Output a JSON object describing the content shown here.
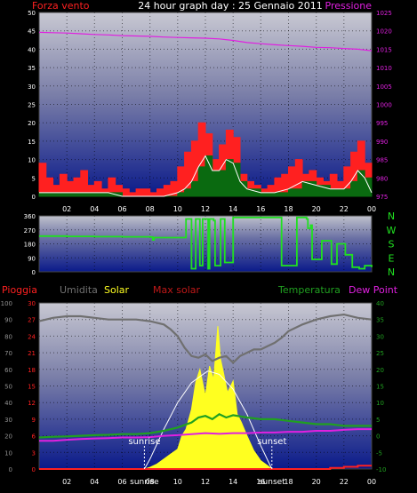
{
  "title": "24 hour graph day : 25 Gennaio 2011",
  "x_tick_labels": [
    "02",
    "04",
    "06",
    "08",
    "10",
    "12",
    "14",
    "16",
    "18",
    "20",
    "22",
    "00"
  ],
  "colors": {
    "background": "#000000",
    "wind": "#ff2020",
    "gust_dark": "#0a6a10",
    "wind_light": "#ffffff",
    "pressure": "#e020e0",
    "direction": "#20e020",
    "humidity": "#707070",
    "solar": "#ffff20",
    "max_solar": "#ffffff",
    "temperature": "#20a020",
    "dew_point": "#e020e0",
    "rain": "#ff2020"
  },
  "chart_data": [
    {
      "type": "line",
      "panel": "wind-pressure",
      "left_axis_label": "Forza vento",
      "right_axis_label": "Pressione",
      "left_ticks": [
        "0",
        "5",
        "10",
        "15",
        "20",
        "25",
        "30",
        "35",
        "40",
        "45",
        "50"
      ],
      "right_ticks": [
        "975",
        "980",
        "985",
        "990",
        "995",
        "1000",
        "1005",
        "1010",
        "1015",
        "1020",
        "1025"
      ],
      "ylim_left": [
        0,
        50
      ],
      "ylim_right": [
        975,
        1025
      ],
      "xlim": [
        0,
        24
      ],
      "series": [
        {
          "key": "pressure",
          "x": [
            0,
            1,
            2,
            3,
            4,
            5,
            6,
            7,
            8,
            9,
            10,
            11,
            12,
            13,
            14,
            15,
            16,
            17,
            18,
            19,
            20,
            21,
            22,
            23,
            24
          ],
          "y": [
            1019.6,
            1019.5,
            1019.4,
            1019.2,
            1019.0,
            1018.9,
            1018.7,
            1018.6,
            1018.5,
            1018.3,
            1018.2,
            1018.1,
            1018.0,
            1017.8,
            1017.4,
            1016.8,
            1016.5,
            1016.2,
            1016.0,
            1015.8,
            1015.5,
            1015.4,
            1015.2,
            1015.0,
            1014.6
          ]
        },
        {
          "key": "wind_speed",
          "x": [
            0,
            0.5,
            1,
            1.5,
            2,
            2.5,
            3,
            3.5,
            4,
            4.5,
            5,
            5.5,
            6,
            6.5,
            7,
            7.5,
            8,
            8.5,
            9,
            9.5,
            10,
            10.5,
            11,
            11.5,
            12,
            12.5,
            13,
            13.5,
            14,
            14.5,
            15,
            15.5,
            16,
            16.5,
            17,
            17.5,
            18,
            18.5,
            19,
            19.5,
            20,
            20.5,
            21,
            21.5,
            22,
            22.5,
            23,
            23.5,
            24
          ],
          "y": [
            9,
            5,
            3,
            6,
            4,
            5,
            7,
            3,
            4,
            2,
            5,
            3,
            2,
            1,
            2,
            2,
            1,
            2,
            3,
            4,
            8,
            12,
            15,
            20,
            17,
            10,
            14,
            18,
            16,
            6,
            4,
            3,
            2,
            3,
            5,
            6,
            8,
            10,
            6,
            7,
            5,
            4,
            6,
            4,
            8,
            12,
            15,
            9,
            3
          ]
        },
        {
          "key": "avg_wind",
          "x": [
            0,
            1,
            2,
            3,
            4,
            5,
            6,
            7,
            8,
            9,
            10,
            10.5,
            11,
            11.5,
            12,
            12.5,
            13,
            13.5,
            14,
            14.5,
            15,
            16,
            17,
            18,
            19,
            20,
            21,
            22,
            22.5,
            23,
            23.5,
            24
          ],
          "y": [
            1,
            1,
            1,
            1,
            1,
            1,
            0,
            0,
            0,
            0,
            1,
            2,
            4,
            8,
            11,
            7,
            7,
            10,
            9,
            4,
            2,
            1,
            1,
            2,
            4,
            3,
            2,
            2,
            4,
            7,
            5,
            1
          ]
        }
      ]
    },
    {
      "type": "line",
      "panel": "wind-direction",
      "left_ticks": [
        "0",
        "90",
        "180",
        "270",
        "360"
      ],
      "right_labels": [
        "N",
        "W",
        "S",
        "E",
        "N"
      ],
      "ylim": [
        0,
        360
      ],
      "xlim": [
        0,
        24
      ],
      "series": [
        {
          "key": "direction",
          "x": [
            0,
            2,
            4,
            6,
            8,
            8.2,
            8.3,
            9,
            10,
            10.5,
            10.6,
            10.8,
            11,
            11.2,
            11.3,
            11.5,
            11.6,
            11.8,
            12,
            12.2,
            12.3,
            12.6,
            12.7,
            13,
            13.1,
            13.3,
            13.4,
            14,
            15,
            16,
            17,
            17.4,
            17.5,
            18.5,
            18.6,
            19.3,
            19.4,
            19.6,
            19.7,
            20.3,
            20.4,
            21,
            21.1,
            21.4,
            21.5,
            22,
            22.1,
            22.5,
            22.6,
            23,
            23.1,
            23.5,
            24
          ],
          "y": [
            230,
            228,
            226,
            225,
            224,
            205,
            220,
            220,
            220,
            220,
            340,
            340,
            20,
            20,
            340,
            340,
            40,
            340,
            340,
            20,
            340,
            330,
            40,
            40,
            340,
            340,
            60,
            350,
            350,
            350,
            350,
            350,
            40,
            40,
            350,
            340,
            280,
            300,
            80,
            80,
            200,
            200,
            50,
            50,
            180,
            180,
            110,
            110,
            30,
            30,
            20,
            40,
            30
          ]
        }
      ]
    },
    {
      "type": "line",
      "panel": "rain-humidity-solar-temperature",
      "legend": [
        "Pioggia",
        "Umidita",
        "Solar",
        "Max solar",
        "Temperatura",
        "Dew Point"
      ],
      "far_left_ticks": [
        "0",
        "10",
        "20",
        "30",
        "40",
        "50",
        "60",
        "70",
        "80",
        "90",
        "100"
      ],
      "near_left_ticks": [
        "0",
        "3",
        "6",
        "9",
        "12",
        "15",
        "18",
        "21",
        "24",
        "27",
        "30"
      ],
      "right_ticks": [
        "-10",
        "-5",
        "0",
        "5",
        "10",
        "15",
        "20",
        "25",
        "30",
        "35",
        "40"
      ],
      "ylim_humidity": [
        0,
        100
      ],
      "ylim_rain": [
        0,
        30
      ],
      "ylim_temperature": [
        -10,
        40
      ],
      "xlim": [
        0,
        24
      ],
      "sunrise_label": "sunrise",
      "sunset_label": "sunset",
      "bottom_sunrise_label": "sunrise",
      "bottom_sunset_label": "sunset",
      "sunrise_x": 7.6,
      "sunset_x": 16.8,
      "series": [
        {
          "key": "humidity",
          "x": [
            0,
            1,
            2,
            3,
            4,
            5,
            6,
            7,
            8,
            9,
            9.5,
            10,
            10.5,
            11,
            11.5,
            12,
            12.5,
            13,
            13.5,
            14,
            14.5,
            15,
            15.5,
            16,
            16.5,
            17,
            17.5,
            18,
            19,
            20,
            21,
            22,
            23,
            24
          ],
          "y": [
            89,
            91,
            92,
            92,
            91,
            90,
            90,
            90,
            89,
            87,
            84,
            80,
            73,
            68,
            67,
            69,
            65,
            67,
            68,
            64,
            68,
            70,
            72,
            72,
            74,
            76,
            79,
            83,
            87,
            90,
            92,
            93,
            91,
            90
          ]
        },
        {
          "key": "solar",
          "x": [
            7.6,
            8,
            8.5,
            9,
            9.5,
            10,
            10.3,
            10.6,
            11,
            11.3,
            11.6,
            12,
            12.3,
            12.6,
            12.9,
            13.1,
            13.3,
            13.6,
            14,
            14.3,
            14.6,
            15,
            15.5,
            16,
            16.5,
            16.8
          ],
          "y": [
            0,
            1,
            3,
            6,
            9,
            12,
            20,
            24,
            36,
            52,
            60,
            44,
            62,
            54,
            86,
            66,
            58,
            46,
            53,
            33,
            28,
            20,
            11,
            5,
            2,
            0
          ]
        },
        {
          "key": "max_solar",
          "x": [
            7.6,
            8,
            9,
            10,
            11,
            12,
            12.2,
            13,
            14,
            15,
            16,
            16.8
          ],
          "y": [
            0,
            6,
            24,
            40,
            52,
            58,
            59,
            57,
            48,
            33,
            14,
            0
          ]
        },
        {
          "key": "temperature",
          "x": [
            0,
            1,
            2,
            3,
            4,
            5,
            6,
            7,
            8,
            9,
            10,
            11,
            11.5,
            12,
            12.5,
            13,
            13.5,
            14,
            15,
            16,
            17,
            18,
            19,
            20,
            21,
            22,
            23,
            24
          ],
          "y": [
            -0.5,
            -0.3,
            -0.2,
            0,
            0.2,
            0.3,
            0.5,
            0.5,
            0.8,
            1.5,
            2.5,
            4,
            5.5,
            6,
            5,
            6.5,
            5.5,
            6.2,
            5.5,
            5,
            5,
            4.5,
            4,
            3.5,
            3.5,
            3,
            3,
            3
          ]
        },
        {
          "key": "dew_point",
          "x": [
            0,
            1,
            2,
            3,
            4,
            5,
            6,
            7,
            8,
            9,
            10,
            11,
            12,
            13,
            14,
            15,
            16,
            17,
            18,
            19,
            20,
            21,
            22,
            23,
            24
          ],
          "y": [
            -1.5,
            -1.5,
            -1.2,
            -1,
            -0.8,
            -0.7,
            -0.5,
            -0.5,
            -0.4,
            0,
            0.2,
            0.5,
            0.8,
            0.6,
            0.8,
            0.8,
            1,
            1,
            1.2,
            1.2,
            1.5,
            1.5,
            1.8,
            2,
            2
          ]
        },
        {
          "key": "rain",
          "x": [
            0,
            12,
            20,
            21,
            22,
            23,
            24
          ],
          "y": [
            0,
            0,
            0,
            0.2,
            0.4,
            0.6,
            0.6
          ]
        }
      ]
    }
  ]
}
